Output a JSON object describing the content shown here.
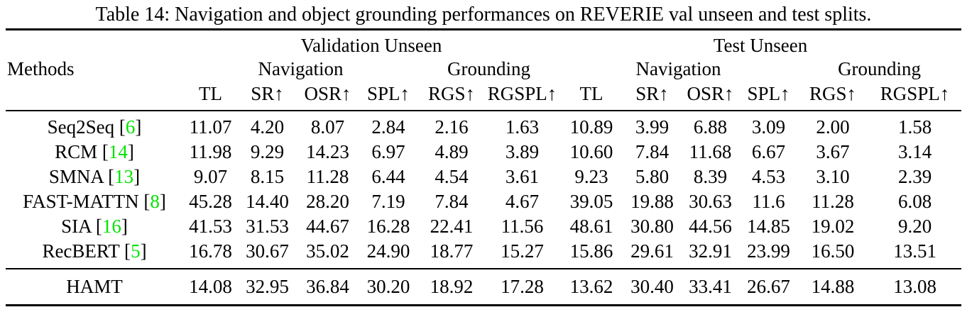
{
  "title": "Table 14: Navigation and object grounding performances on REVERIE val unseen and test splits.",
  "colors": {
    "citation_green": "#00e400"
  },
  "table": {
    "col_groups": [
      {
        "label": "Validation Unseen"
      },
      {
        "label": "Test Unseen"
      }
    ],
    "methods_header": "Methods",
    "nav_label": "Navigation",
    "ground_label": "Grounding",
    "metrics": [
      "TL",
      "SR↑",
      "OSR↑",
      "SPL↑",
      "RGS↑",
      "RGSPL↑"
    ],
    "rows": [
      {
        "method": "Seq2Seq",
        "ref": "6",
        "val_unseen": [
          "11.07",
          "4.20",
          "8.07",
          "2.84",
          "2.16",
          "1.63"
        ],
        "test_unseen": [
          "10.89",
          "3.99",
          "6.88",
          "3.09",
          "2.00",
          "1.58"
        ],
        "val_bold": [],
        "test_bold": []
      },
      {
        "method": "RCM",
        "ref": "14",
        "val_unseen": [
          "11.98",
          "9.29",
          "14.23",
          "6.97",
          "4.89",
          "3.89"
        ],
        "test_unseen": [
          "10.60",
          "7.84",
          "11.68",
          "6.67",
          "3.67",
          "3.14"
        ],
        "val_bold": [],
        "test_bold": []
      },
      {
        "method": "SMNA",
        "ref": "13",
        "val_unseen": [
          "9.07",
          "8.15",
          "11.28",
          "6.44",
          "4.54",
          "3.61"
        ],
        "test_unseen": [
          "9.23",
          "5.80",
          "8.39",
          "4.53",
          "3.10",
          "2.39"
        ],
        "val_bold": [],
        "test_bold": []
      },
      {
        "method": "FAST-MATTN",
        "ref": "8",
        "val_unseen": [
          "45.28",
          "14.40",
          "28.20",
          "7.19",
          "7.84",
          "4.67"
        ],
        "test_unseen": [
          "39.05",
          "19.88",
          "30.63",
          "11.6",
          "11.28",
          "6.08"
        ],
        "val_bold": [],
        "test_bold": []
      },
      {
        "method": "SIA",
        "ref": "16",
        "val_unseen": [
          "41.53",
          "31.53",
          "44.67",
          "16.28",
          "22.41",
          "11.56"
        ],
        "test_unseen": [
          "48.61",
          "30.80",
          "44.56",
          "14.85",
          "19.02",
          "9.20"
        ],
        "val_bold": [
          2,
          4
        ],
        "test_bold": [
          1,
          2,
          4
        ]
      },
      {
        "method": "RecBERT",
        "ref": "5",
        "val_unseen": [
          "16.78",
          "30.67",
          "35.02",
          "24.90",
          "18.77",
          "15.27"
        ],
        "test_unseen": [
          "15.86",
          "29.61",
          "32.91",
          "23.99",
          "16.50",
          "13.51"
        ],
        "val_bold": [],
        "test_bold": [
          5
        ]
      }
    ],
    "hamt": {
      "method": "HAMT",
      "ref": null,
      "val_unseen": [
        "14.08",
        "32.95",
        "36.84",
        "30.20",
        "18.92",
        "17.28"
      ],
      "test_unseen": [
        "13.62",
        "30.40",
        "33.41",
        "26.67",
        "14.88",
        "13.08"
      ],
      "val_bold": [
        1,
        3,
        5
      ],
      "test_bold": [
        3
      ]
    }
  }
}
